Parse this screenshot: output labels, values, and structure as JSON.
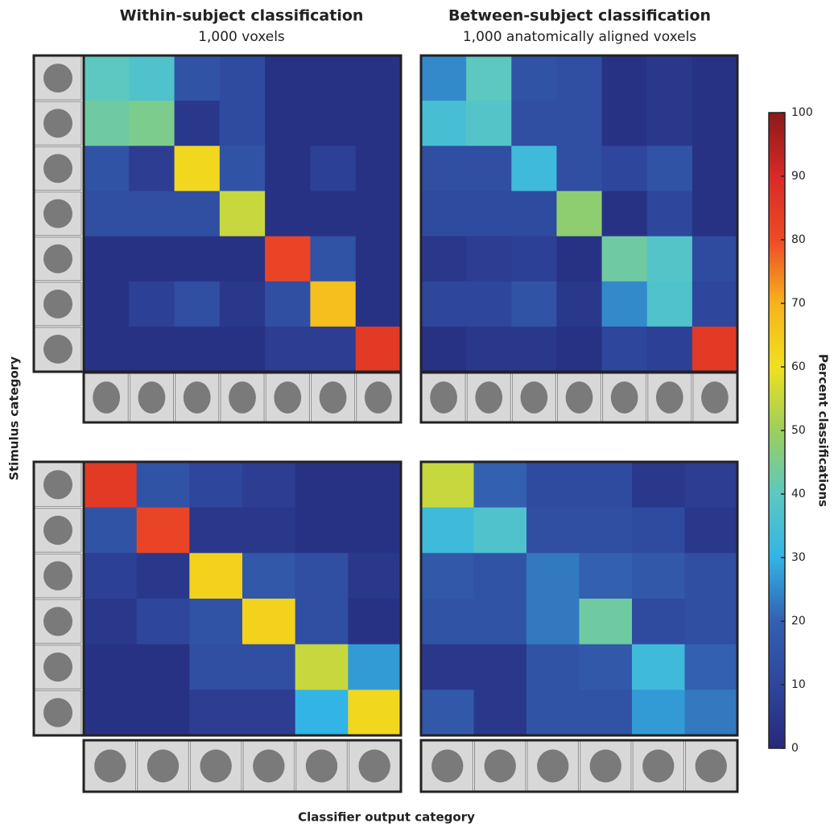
{
  "figure": {
    "ylabel": "Stimulus category",
    "xlabel": "Classifier output category",
    "colorbar": {
      "label": "Percent classifications",
      "zlim": [
        0,
        100
      ],
      "zticks": [
        0,
        10,
        20,
        30,
        40,
        50,
        60,
        70,
        80,
        90,
        100
      ],
      "colormap": [
        "#26297a",
        "#2e469c",
        "#3360b0",
        "#32b4e6",
        "#5cc8c0",
        "#9ccf5c",
        "#f0e01e",
        "#f7b21c",
        "#ee4a26",
        "#d82a26",
        "#8a1a1a"
      ]
    }
  },
  "chart_data": [
    {
      "type": "heatmap",
      "title": "Within-subject classification",
      "subtitle": "1,000 voxels",
      "values": [
        [
          40,
          37,
          15,
          12,
          3,
          3,
          3
        ],
        [
          43,
          45,
          5,
          12,
          3,
          3,
          3
        ],
        [
          15,
          7,
          62,
          15,
          3,
          8,
          3
        ],
        [
          13,
          13,
          13,
          55,
          3,
          3,
          3
        ],
        [
          3,
          3,
          3,
          3,
          82,
          15,
          3
        ],
        [
          3,
          8,
          13,
          5,
          13,
          67,
          3
        ],
        [
          3,
          3,
          3,
          3,
          7,
          7,
          85
        ]
      ]
    },
    {
      "type": "heatmap",
      "title": "Between-subject classification",
      "subtitle": "1,000 anatomically aligned voxels",
      "values": [
        [
          25,
          40,
          15,
          13,
          3,
          5,
          3
        ],
        [
          35,
          38,
          13,
          13,
          3,
          5,
          3
        ],
        [
          13,
          13,
          33,
          13,
          10,
          15,
          3
        ],
        [
          12,
          12,
          12,
          48,
          3,
          10,
          3
        ],
        [
          5,
          7,
          8,
          3,
          43,
          38,
          12
        ],
        [
          10,
          10,
          15,
          5,
          25,
          37,
          10
        ],
        [
          3,
          5,
          5,
          3,
          10,
          8,
          85
        ]
      ]
    },
    {
      "type": "heatmap",
      "values": [
        [
          85,
          15,
          10,
          7,
          3,
          3
        ],
        [
          15,
          82,
          5,
          5,
          3,
          3
        ],
        [
          8,
          5,
          63,
          17,
          13,
          5
        ],
        [
          5,
          10,
          15,
          63,
          13,
          3
        ],
        [
          3,
          3,
          13,
          13,
          55,
          27
        ],
        [
          3,
          3,
          7,
          7,
          30,
          62
        ]
      ]
    },
    {
      "type": "heatmap",
      "values": [
        [
          55,
          20,
          12,
          12,
          5,
          7
        ],
        [
          33,
          37,
          13,
          13,
          12,
          5
        ],
        [
          17,
          15,
          23,
          20,
          17,
          13
        ],
        [
          15,
          15,
          23,
          43,
          12,
          13
        ],
        [
          5,
          5,
          15,
          17,
          33,
          20
        ],
        [
          17,
          5,
          15,
          15,
          27,
          23
        ]
      ]
    }
  ]
}
